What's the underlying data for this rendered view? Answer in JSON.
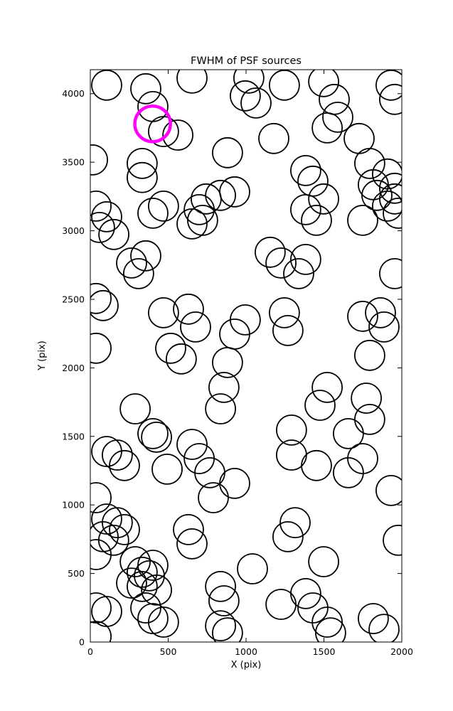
{
  "chart_data": {
    "type": "scatter",
    "title": "FWHM of PSF sources",
    "xlabel": "X (pix)",
    "ylabel": "Y (pix)",
    "xlim": [
      0,
      2000
    ],
    "ylim": [
      0,
      4175
    ],
    "x_ticks": [
      0,
      500,
      1000,
      1500,
      2000
    ],
    "y_ticks": [
      0,
      500,
      1000,
      1500,
      2000,
      2500,
      3000,
      3500,
      4000
    ],
    "grid": false,
    "legend": "none",
    "marker": {
      "shape": "circle",
      "fill": "none",
      "edge_color": "#000000",
      "radius_px": 21,
      "line_width": 1.8
    },
    "highlight": {
      "x": 400,
      "y": 3780,
      "edge_color": "#ff00ff",
      "radius_px": 25,
      "line_width": 4.5,
      "meaning": "selected PSF source"
    },
    "points": [
      [
        105,
        4062
      ],
      [
        356,
        4036
      ],
      [
        653,
        4114
      ],
      [
        995,
        3984
      ],
      [
        1018,
        4114
      ],
      [
        1064,
        3932
      ],
      [
        1246,
        4062
      ],
      [
        1498,
        4088
      ],
      [
        1566,
        3958
      ],
      [
        1589,
        3828
      ],
      [
        1931,
        4062
      ],
      [
        1954,
        3958
      ],
      [
        402,
        3906
      ],
      [
        470,
        3724
      ],
      [
        562,
        3698
      ],
      [
        14,
        3517
      ],
      [
        333,
        3491
      ],
      [
        333,
        3388
      ],
      [
        881,
        3569
      ],
      [
        1178,
        3673
      ],
      [
        1383,
        3439
      ],
      [
        1429,
        3362
      ],
      [
        1521,
        3750
      ],
      [
        1726,
        3673
      ],
      [
        1794,
        3491
      ],
      [
        1908,
        3414
      ],
      [
        1954,
        3310
      ],
      [
        1817,
        3336
      ],
      [
        37,
        3180
      ],
      [
        105,
        3102
      ],
      [
        59,
        3024
      ],
      [
        151,
        2973
      ],
      [
        402,
        3128
      ],
      [
        470,
        3180
      ],
      [
        699,
        3154
      ],
      [
        744,
        3232
      ],
      [
        836,
        3258
      ],
      [
        927,
        3284
      ],
      [
        721,
        3076
      ],
      [
        653,
        3050
      ],
      [
        1383,
        3154
      ],
      [
        1452,
        3076
      ],
      [
        1498,
        3232
      ],
      [
        1749,
        3076
      ],
      [
        1840,
        3258
      ],
      [
        1908,
        3180
      ],
      [
        1954,
        3232
      ],
      [
        1977,
        3128
      ],
      [
        265,
        2765
      ],
      [
        310,
        2687
      ],
      [
        356,
        2817
      ],
      [
        1155,
        2843
      ],
      [
        1224,
        2765
      ],
      [
        1338,
        2687
      ],
      [
        1383,
        2791
      ],
      [
        1954,
        2687
      ],
      [
        37,
        2506
      ],
      [
        82,
        2454
      ],
      [
        470,
        2402
      ],
      [
        630,
        2428
      ],
      [
        676,
        2298
      ],
      [
        927,
        2246
      ],
      [
        995,
        2350
      ],
      [
        1246,
        2402
      ],
      [
        1269,
        2272
      ],
      [
        1749,
        2376
      ],
      [
        1863,
        2402
      ],
      [
        1886,
        2298
      ],
      [
        516,
        2143
      ],
      [
        584,
        2065
      ],
      [
        37,
        2143
      ],
      [
        881,
        2039
      ],
      [
        1794,
        2091
      ],
      [
        858,
        1857
      ],
      [
        1521,
        1857
      ],
      [
        1475,
        1727
      ],
      [
        1772,
        1779
      ],
      [
        836,
        1701
      ],
      [
        288,
        1701
      ],
      [
        1794,
        1624
      ],
      [
        402,
        1520
      ],
      [
        425,
        1494
      ],
      [
        1292,
        1546
      ],
      [
        1657,
        1520
      ],
      [
        105,
        1390
      ],
      [
        173,
        1364
      ],
      [
        219,
        1287
      ],
      [
        653,
        1442
      ],
      [
        699,
        1338
      ],
      [
        493,
        1261
      ],
      [
        767,
        1235
      ],
      [
        927,
        1157
      ],
      [
        1292,
        1364
      ],
      [
        1452,
        1287
      ],
      [
        1657,
        1235
      ],
      [
        1749,
        1338
      ],
      [
        1931,
        1105
      ],
      [
        790,
        1053
      ],
      [
        37,
        1053
      ],
      [
        105,
        897
      ],
      [
        173,
        871
      ],
      [
        82,
        768
      ],
      [
        150,
        742
      ],
      [
        219,
        820
      ],
      [
        630,
        820
      ],
      [
        653,
        716
      ],
      [
        1315,
        871
      ],
      [
        1269,
        768
      ],
      [
        1977,
        742
      ],
      [
        37,
        638
      ],
      [
        288,
        586
      ],
      [
        333,
        509
      ],
      [
        402,
        560
      ],
      [
        379,
        483
      ],
      [
        1041,
        534
      ],
      [
        1498,
        586
      ],
      [
        265,
        430
      ],
      [
        333,
        405
      ],
      [
        425,
        379
      ],
      [
        836,
        405
      ],
      [
        858,
        301
      ],
      [
        1224,
        275
      ],
      [
        1383,
        353
      ],
      [
        1429,
        249
      ],
      [
        37,
        249
      ],
      [
        105,
        223
      ],
      [
        356,
        249
      ],
      [
        402,
        171
      ],
      [
        470,
        145
      ],
      [
        836,
        119
      ],
      [
        881,
        67
      ],
      [
        1521,
        145
      ],
      [
        1543,
        67
      ],
      [
        1817,
        171
      ],
      [
        1886,
        93
      ],
      [
        37,
        41
      ]
    ]
  }
}
